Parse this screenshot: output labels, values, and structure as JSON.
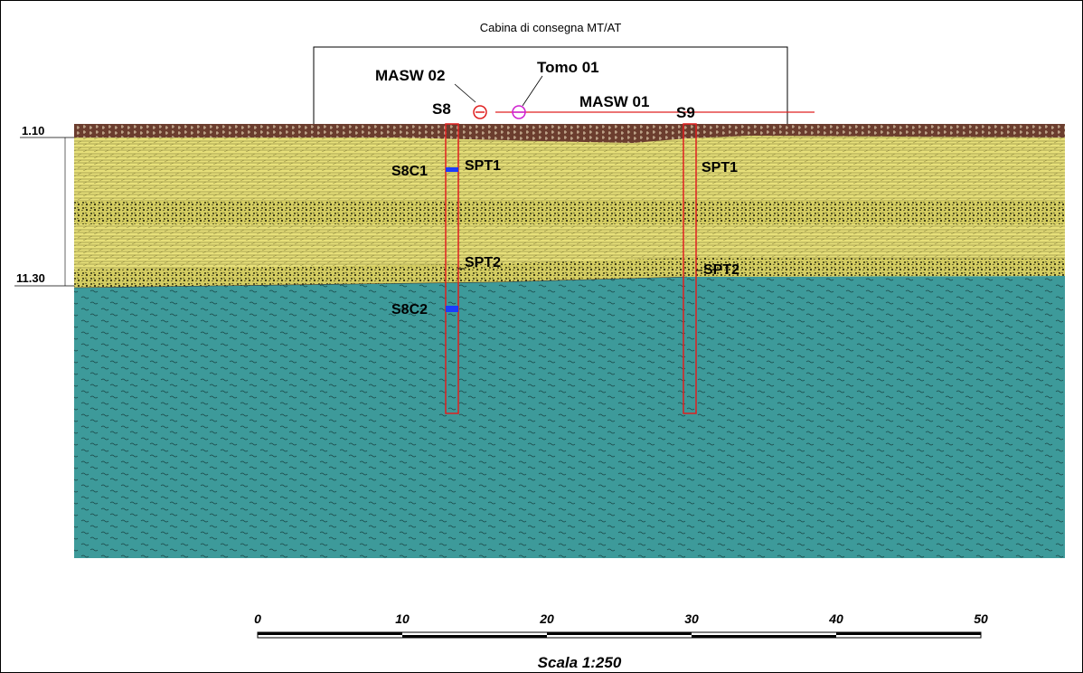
{
  "cabin_label": "Cabina di consegna MT/AT",
  "surveys": {
    "masw02": "MASW 02",
    "tomo01": "Tomo 01",
    "masw01": "MASW 01"
  },
  "boreholes": {
    "s8": "S8",
    "s9": "S9"
  },
  "samples": {
    "s8c1": "S8C1",
    "s8c2": "S8C2"
  },
  "spt": {
    "s8_spt1": "SPT1",
    "s8_spt2": "SPT2",
    "s9_spt1": "SPT1",
    "s9_spt2": "SPT2"
  },
  "depths": {
    "top": "1.10",
    "bottom": "11.30"
  },
  "scale": {
    "ticks": [
      "0",
      "10",
      "20",
      "30",
      "40",
      "50"
    ],
    "title": "Scala 1:250"
  },
  "colors": {
    "topsoil": "#6b3d2e",
    "sand_yellow": "#e7e07a",
    "gravel_band": "#c9c25a",
    "clay_teal": "#3d9a9a",
    "borehole_red": "#e02020",
    "masw_marker": "#e02020",
    "tomo_marker": "#d020d0",
    "sample_blue": "#1a3cff"
  }
}
